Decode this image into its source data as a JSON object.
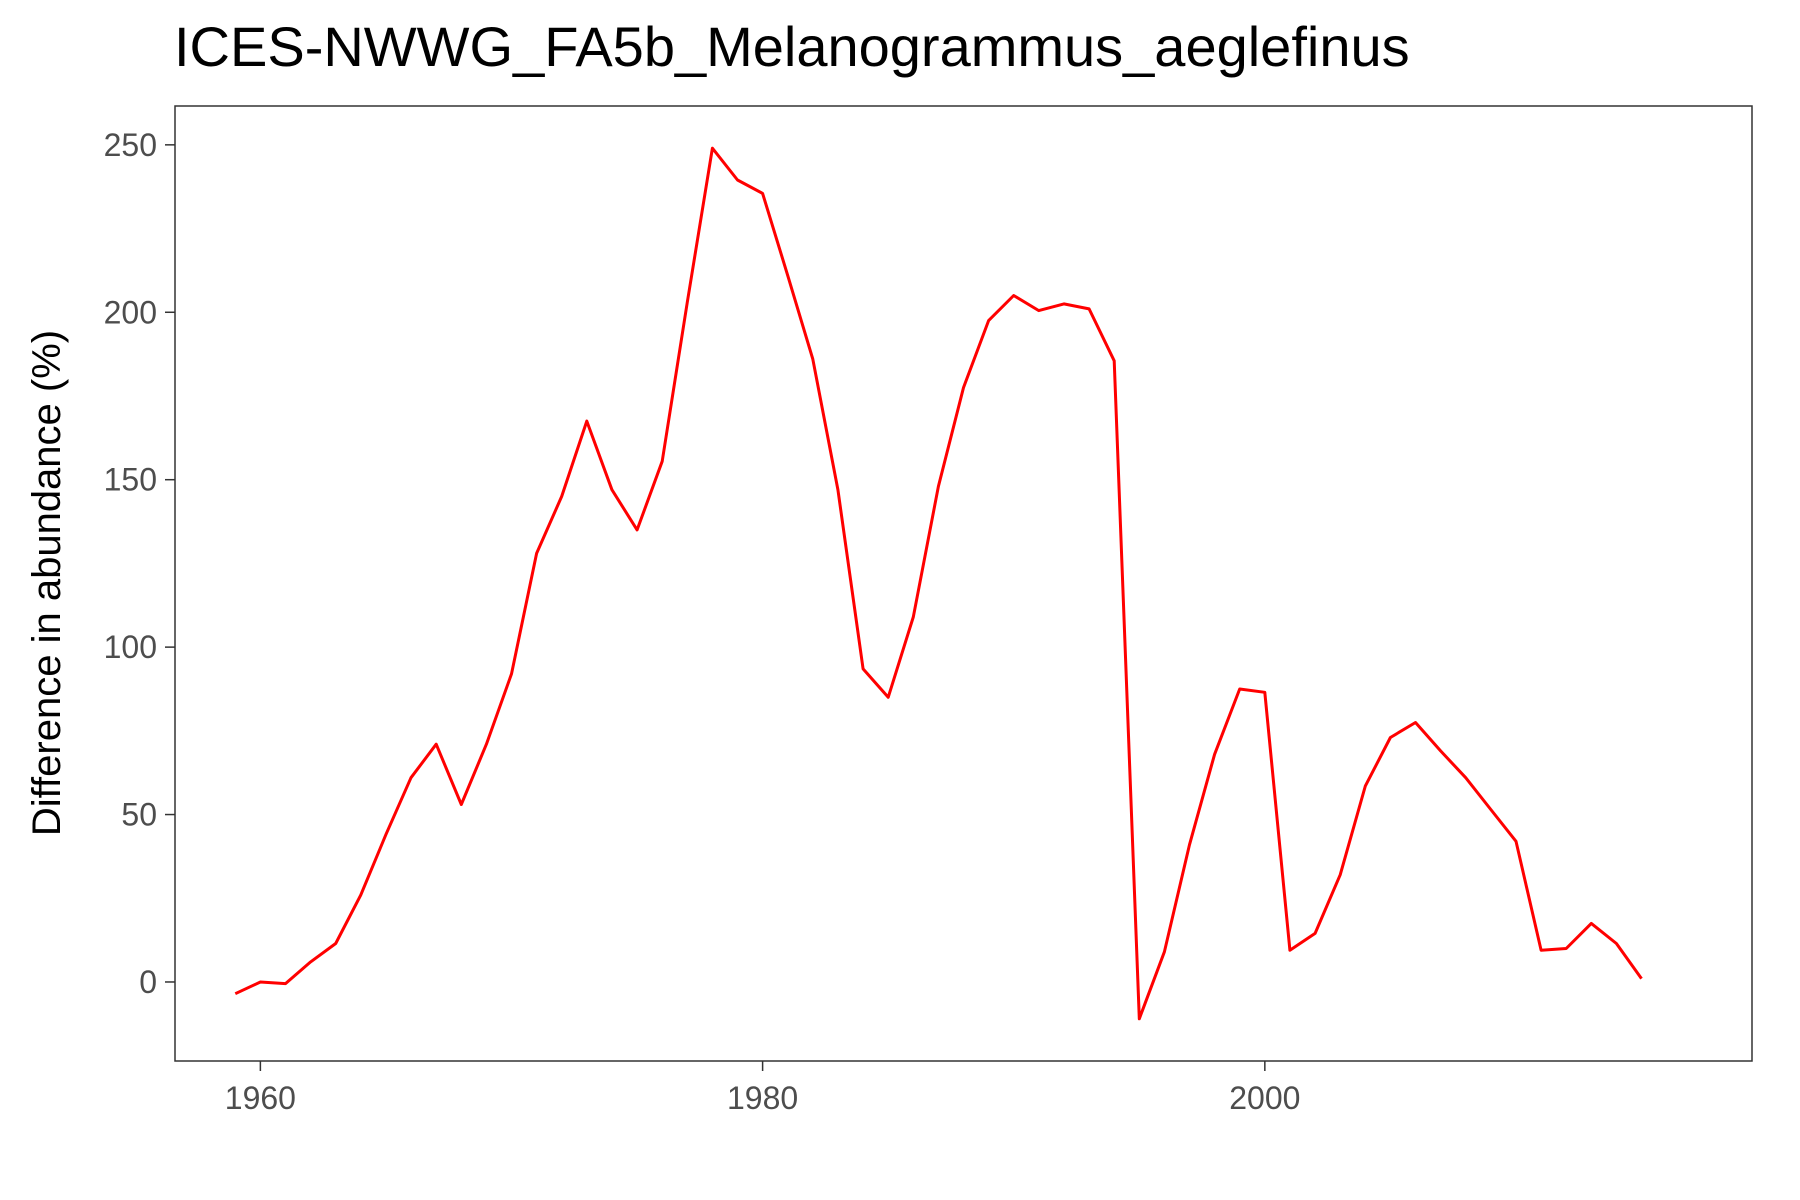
{
  "chart_data": {
    "type": "line",
    "title": "ICES-NWWG_FA5b_Melanogrammus_aeglefinus",
    "xlabel": "",
    "ylabel": "Difference in abundance (%)",
    "xlim": [
      1956.6,
      2019.4
    ],
    "ylim": [
      -23.6,
      261.6
    ],
    "x_ticks": [
      1960,
      1980,
      2000
    ],
    "y_ticks": [
      0,
      50,
      100,
      150,
      200,
      250
    ],
    "grid": false,
    "line_color": "#ff0000",
    "series": [
      {
        "x": [
          1959,
          1960,
          1961,
          1962,
          1963,
          1964,
          1965,
          1966,
          1967,
          1968,
          1969,
          1970,
          1971,
          1972,
          1973,
          1974,
          1975,
          1976,
          1977,
          1978,
          1979,
          1980,
          1981,
          1982,
          1983,
          1984,
          1985,
          1986,
          1987,
          1988,
          1989,
          1990,
          1991,
          1992,
          1993,
          1994,
          1995,
          1996,
          1997,
          1998,
          1999,
          2000,
          2001,
          2002,
          2003,
          2004,
          2005,
          2006,
          2007,
          2008,
          2009,
          2010,
          2011,
          2012,
          2013,
          2014,
          2015
        ],
        "values": [
          -3.5,
          0,
          -0.5,
          6,
          11.5,
          26,
          44,
          61,
          71,
          53,
          71,
          92,
          128,
          145,
          167.5,
          147,
          135,
          155.5,
          203,
          249,
          239.5,
          235.5,
          211,
          186,
          147,
          93.5,
          85,
          109,
          148,
          177.5,
          197.5,
          205,
          200.5,
          202.5,
          201,
          185.5,
          -11,
          9,
          41,
          68,
          87.5,
          86.5,
          9.5,
          14.5,
          32,
          58.5,
          73,
          77.5,
          69,
          61,
          51.5,
          42,
          9.5,
          10,
          17.5,
          11.5,
          1
        ]
      }
    ]
  }
}
